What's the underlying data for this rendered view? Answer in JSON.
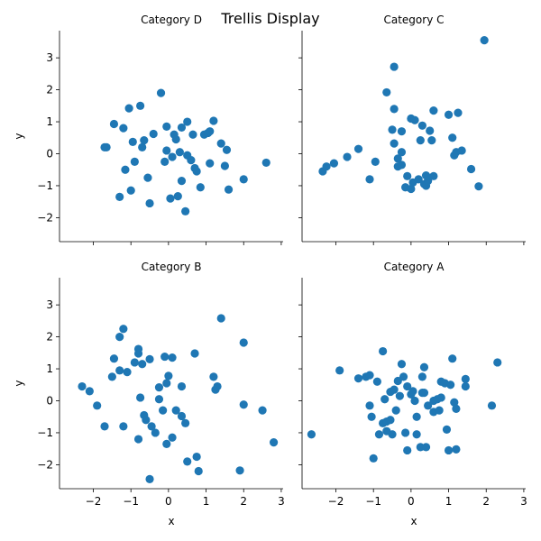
{
  "title": "Trellis Display",
  "chart_data": {
    "type": "scatter",
    "title": "Trellis Display",
    "layout": "2x2 facet grid, shared x and y axes",
    "marker_color": "#1f77b4",
    "xlim": [
      -2.9,
      3.05
    ],
    "ylim": [
      -2.75,
      3.85
    ],
    "x_ticks": [
      -2,
      -1,
      0,
      1,
      2,
      3
    ],
    "y_ticks": [
      -2,
      -1,
      0,
      1,
      2,
      3
    ],
    "xlabel": "x",
    "ylabel": "y",
    "panels": [
      {
        "title": "Category D",
        "points": [
          [
            -1.7,
            0.2
          ],
          [
            -1.65,
            0.2
          ],
          [
            -1.45,
            0.93
          ],
          [
            -1.3,
            -1.35
          ],
          [
            -1.2,
            0.8
          ],
          [
            -1.15,
            -0.5
          ],
          [
            -1.05,
            1.42
          ],
          [
            -1.0,
            -1.15
          ],
          [
            -0.95,
            0.37
          ],
          [
            -0.9,
            -0.25
          ],
          [
            -0.75,
            1.5
          ],
          [
            -0.7,
            0.2
          ],
          [
            -0.65,
            0.42
          ],
          [
            -0.55,
            -0.75
          ],
          [
            -0.5,
            -1.55
          ],
          [
            -0.4,
            0.62
          ],
          [
            -0.2,
            1.9
          ],
          [
            -0.1,
            -0.25
          ],
          [
            -0.05,
            0.1
          ],
          [
            -0.05,
            0.85
          ],
          [
            0.05,
            -1.4
          ],
          [
            0.1,
            -0.1
          ],
          [
            0.15,
            0.6
          ],
          [
            0.2,
            0.45
          ],
          [
            0.25,
            -1.33
          ],
          [
            0.3,
            0.05
          ],
          [
            0.35,
            -0.85
          ],
          [
            0.35,
            0.82
          ],
          [
            0.45,
            -1.8
          ],
          [
            0.5,
            -0.05
          ],
          [
            0.5,
            1.0
          ],
          [
            0.6,
            -0.2
          ],
          [
            0.65,
            0.6
          ],
          [
            0.7,
            -0.45
          ],
          [
            0.75,
            -0.55
          ],
          [
            0.85,
            -1.05
          ],
          [
            0.95,
            0.6
          ],
          [
            1.05,
            0.65
          ],
          [
            1.1,
            0.7
          ],
          [
            1.1,
            -0.3
          ],
          [
            1.2,
            1.03
          ],
          [
            1.4,
            0.32
          ],
          [
            1.5,
            -0.38
          ],
          [
            1.55,
            0.12
          ],
          [
            1.6,
            -1.12
          ],
          [
            2.0,
            -0.8
          ],
          [
            2.6,
            -0.28
          ]
        ]
      },
      {
        "title": "Category C",
        "points": [
          [
            -2.35,
            -0.55
          ],
          [
            -2.25,
            -0.4
          ],
          [
            -2.05,
            -0.3
          ],
          [
            -1.7,
            -0.1
          ],
          [
            -1.4,
            0.15
          ],
          [
            -1.1,
            -0.8
          ],
          [
            -0.95,
            -0.25
          ],
          [
            -0.65,
            1.92
          ],
          [
            -0.5,
            0.75
          ],
          [
            -0.45,
            2.72
          ],
          [
            -0.45,
            1.4
          ],
          [
            -0.45,
            0.32
          ],
          [
            -0.35,
            -0.15
          ],
          [
            -0.35,
            -0.4
          ],
          [
            -0.25,
            -0.35
          ],
          [
            -0.25,
            0.05
          ],
          [
            -0.25,
            0.7
          ],
          [
            -0.15,
            -1.05
          ],
          [
            -0.1,
            -0.7
          ],
          [
            0.0,
            -1.1
          ],
          [
            0.0,
            1.1
          ],
          [
            0.05,
            -0.9
          ],
          [
            0.1,
            1.05
          ],
          [
            0.2,
            -0.8
          ],
          [
            0.25,
            0.42
          ],
          [
            0.3,
            0.88
          ],
          [
            0.35,
            -0.95
          ],
          [
            0.4,
            -1.0
          ],
          [
            0.4,
            -0.68
          ],
          [
            0.45,
            -0.85
          ],
          [
            0.5,
            0.72
          ],
          [
            0.55,
            0.42
          ],
          [
            0.6,
            1.35
          ],
          [
            0.6,
            -0.7
          ],
          [
            1.0,
            1.22
          ],
          [
            1.1,
            0.5
          ],
          [
            1.15,
            -0.05
          ],
          [
            1.2,
            0.05
          ],
          [
            1.25,
            1.28
          ],
          [
            1.35,
            0.1
          ],
          [
            1.6,
            -0.48
          ],
          [
            1.8,
            -1.02
          ],
          [
            1.95,
            3.55
          ]
        ]
      },
      {
        "title": "Category B",
        "points": [
          [
            -2.3,
            0.45
          ],
          [
            -2.1,
            0.3
          ],
          [
            -1.9,
            -0.15
          ],
          [
            -1.7,
            -0.8
          ],
          [
            -1.5,
            0.75
          ],
          [
            -1.45,
            1.32
          ],
          [
            -1.3,
            2.0
          ],
          [
            -1.3,
            0.95
          ],
          [
            -1.2,
            2.25
          ],
          [
            -1.2,
            -0.8
          ],
          [
            -1.1,
            0.9
          ],
          [
            -0.9,
            1.2
          ],
          [
            -0.8,
            1.62
          ],
          [
            -0.8,
            1.48
          ],
          [
            -0.8,
            -1.2
          ],
          [
            -0.75,
            0.1
          ],
          [
            -0.7,
            1.15
          ],
          [
            -0.65,
            -0.45
          ],
          [
            -0.6,
            -0.6
          ],
          [
            -0.5,
            -2.45
          ],
          [
            -0.5,
            1.3
          ],
          [
            -0.45,
            -0.8
          ],
          [
            -0.35,
            -1.0
          ],
          [
            -0.25,
            0.05
          ],
          [
            -0.25,
            0.42
          ],
          [
            -0.15,
            -0.3
          ],
          [
            -0.1,
            1.38
          ],
          [
            -0.05,
            0.55
          ],
          [
            -0.05,
            -1.35
          ],
          [
            0.0,
            0.78
          ],
          [
            0.1,
            -1.15
          ],
          [
            0.1,
            1.35
          ],
          [
            0.2,
            -0.3
          ],
          [
            0.35,
            0.45
          ],
          [
            0.35,
            -0.48
          ],
          [
            0.45,
            -0.7
          ],
          [
            0.5,
            -1.9
          ],
          [
            0.7,
            1.48
          ],
          [
            0.75,
            -1.75
          ],
          [
            0.8,
            -2.2
          ],
          [
            1.2,
            0.75
          ],
          [
            1.25,
            0.35
          ],
          [
            1.3,
            0.45
          ],
          [
            1.4,
            2.58
          ],
          [
            1.9,
            -2.18
          ],
          [
            2.0,
            1.82
          ],
          [
            2.0,
            -0.12
          ],
          [
            2.5,
            -0.3
          ],
          [
            2.8,
            -1.3
          ]
        ]
      },
      {
        "title": "Category A",
        "points": [
          [
            -2.65,
            -1.05
          ],
          [
            -1.9,
            0.95
          ],
          [
            -1.4,
            0.7
          ],
          [
            -1.2,
            0.75
          ],
          [
            -1.1,
            -0.15
          ],
          [
            -1.1,
            0.8
          ],
          [
            -1.05,
            -0.5
          ],
          [
            -1.0,
            -1.8
          ],
          [
            -0.9,
            0.6
          ],
          [
            -0.85,
            -1.05
          ],
          [
            -0.75,
            1.55
          ],
          [
            -0.75,
            -0.7
          ],
          [
            -0.7,
            0.05
          ],
          [
            -0.65,
            -0.65
          ],
          [
            -0.65,
            -0.95
          ],
          [
            -0.55,
            -0.6
          ],
          [
            -0.55,
            0.28
          ],
          [
            -0.5,
            -1.05
          ],
          [
            -0.45,
            0.35
          ],
          [
            -0.4,
            -0.3
          ],
          [
            -0.35,
            0.62
          ],
          [
            -0.3,
            0.15
          ],
          [
            -0.25,
            1.15
          ],
          [
            -0.2,
            0.75
          ],
          [
            -0.15,
            -1.0
          ],
          [
            -0.1,
            -1.55
          ],
          [
            -0.1,
            0.45
          ],
          [
            0.0,
            0.2
          ],
          [
            0.05,
            0.3
          ],
          [
            0.1,
            0.0
          ],
          [
            0.15,
            -0.5
          ],
          [
            0.15,
            -1.05
          ],
          [
            0.25,
            -1.45
          ],
          [
            0.3,
            0.25
          ],
          [
            0.3,
            0.75
          ],
          [
            0.35,
            1.05
          ],
          [
            0.35,
            0.25
          ],
          [
            0.4,
            -1.45
          ],
          [
            0.45,
            -0.15
          ],
          [
            0.6,
            0.0
          ],
          [
            0.6,
            -0.35
          ],
          [
            0.7,
            0.05
          ],
          [
            0.75,
            -0.3
          ],
          [
            0.8,
            0.1
          ],
          [
            0.8,
            0.6
          ],
          [
            0.9,
            0.55
          ],
          [
            0.95,
            -0.9
          ],
          [
            1.0,
            -1.55
          ],
          [
            1.05,
            0.5
          ],
          [
            1.1,
            1.32
          ],
          [
            1.15,
            -0.05
          ],
          [
            1.2,
            -1.52
          ],
          [
            1.2,
            -0.25
          ],
          [
            1.45,
            0.45
          ],
          [
            1.45,
            0.68
          ],
          [
            2.15,
            -0.15
          ],
          [
            2.3,
            1.2
          ]
        ]
      }
    ]
  }
}
